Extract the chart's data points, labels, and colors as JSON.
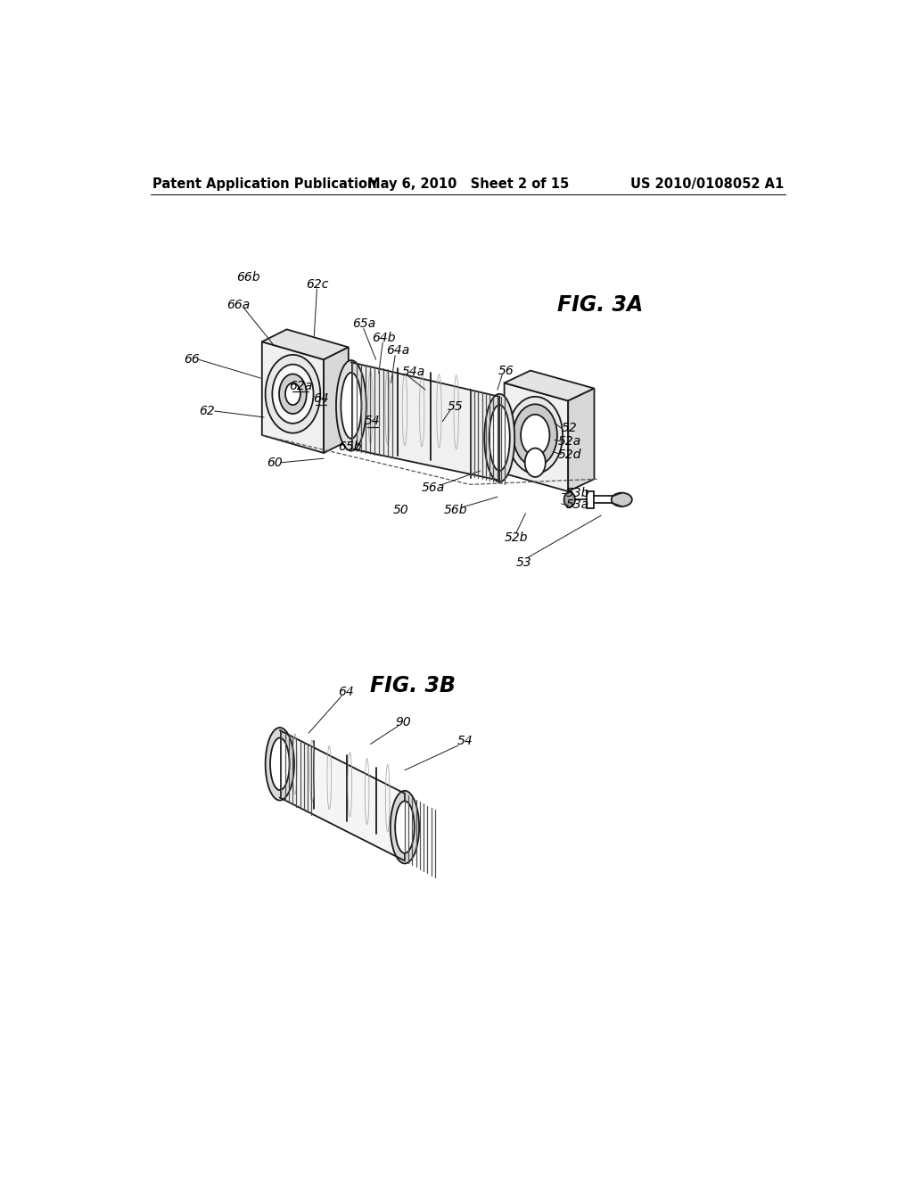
{
  "background_color": "#ffffff",
  "header_left": "Patent Application Publication",
  "header_mid": "May 6, 2010   Sheet 2 of 15",
  "header_right": "US 2010/0108052 A1",
  "fig3a_title": "FIG. 3A",
  "fig3b_title": "FIG. 3B",
  "line_color": "#1a1a1a",
  "header_fontsize": 10.5,
  "title_fontsize": 17,
  "label_fontsize": 10
}
